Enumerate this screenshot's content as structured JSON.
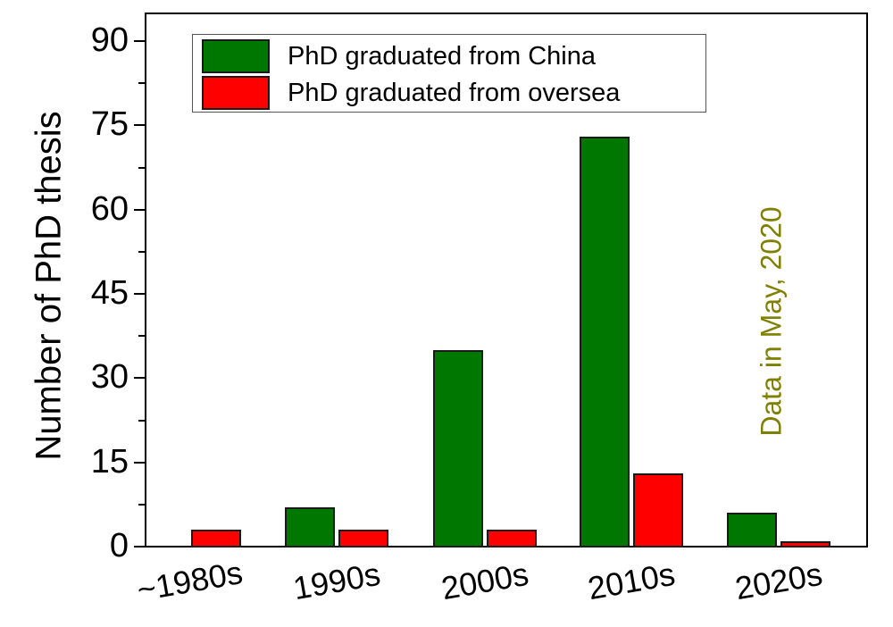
{
  "chart_data": {
    "type": "bar",
    "title": "",
    "xlabel": "",
    "ylabel": "Number of PhD thesis",
    "ylim": [
      0,
      95
    ],
    "yticks": [
      0,
      15,
      30,
      45,
      60,
      75,
      90
    ],
    "ytick_labels": [
      "0",
      "15",
      "30",
      "45",
      "60",
      "75",
      "90"
    ],
    "categories": [
      "~1980s",
      "1990s",
      "2000s",
      "2010s",
      "2020s"
    ],
    "series": [
      {
        "name": "PhD graduated from China",
        "color": "#007700",
        "values": [
          0,
          7,
          35,
          73,
          6
        ]
      },
      {
        "name": "PhD graduated from oversea",
        "color": "#ff0000",
        "values": [
          3,
          3,
          3,
          13,
          1
        ]
      }
    ],
    "legend_position": "upper-left-inside",
    "grid": false,
    "annotation": {
      "text": "Data in May, 2020",
      "color": "#808000",
      "orientation": "vertical"
    }
  },
  "axis": {
    "y_title": "Number of PhD thesis"
  },
  "legend": {
    "items": [
      {
        "label": "PhD graduated from China",
        "color": "#007700"
      },
      {
        "label": "PhD graduated from oversea",
        "color": "#ff0000"
      }
    ]
  },
  "annotation": {
    "text": "Data in May, 2020",
    "color": "#808000"
  }
}
